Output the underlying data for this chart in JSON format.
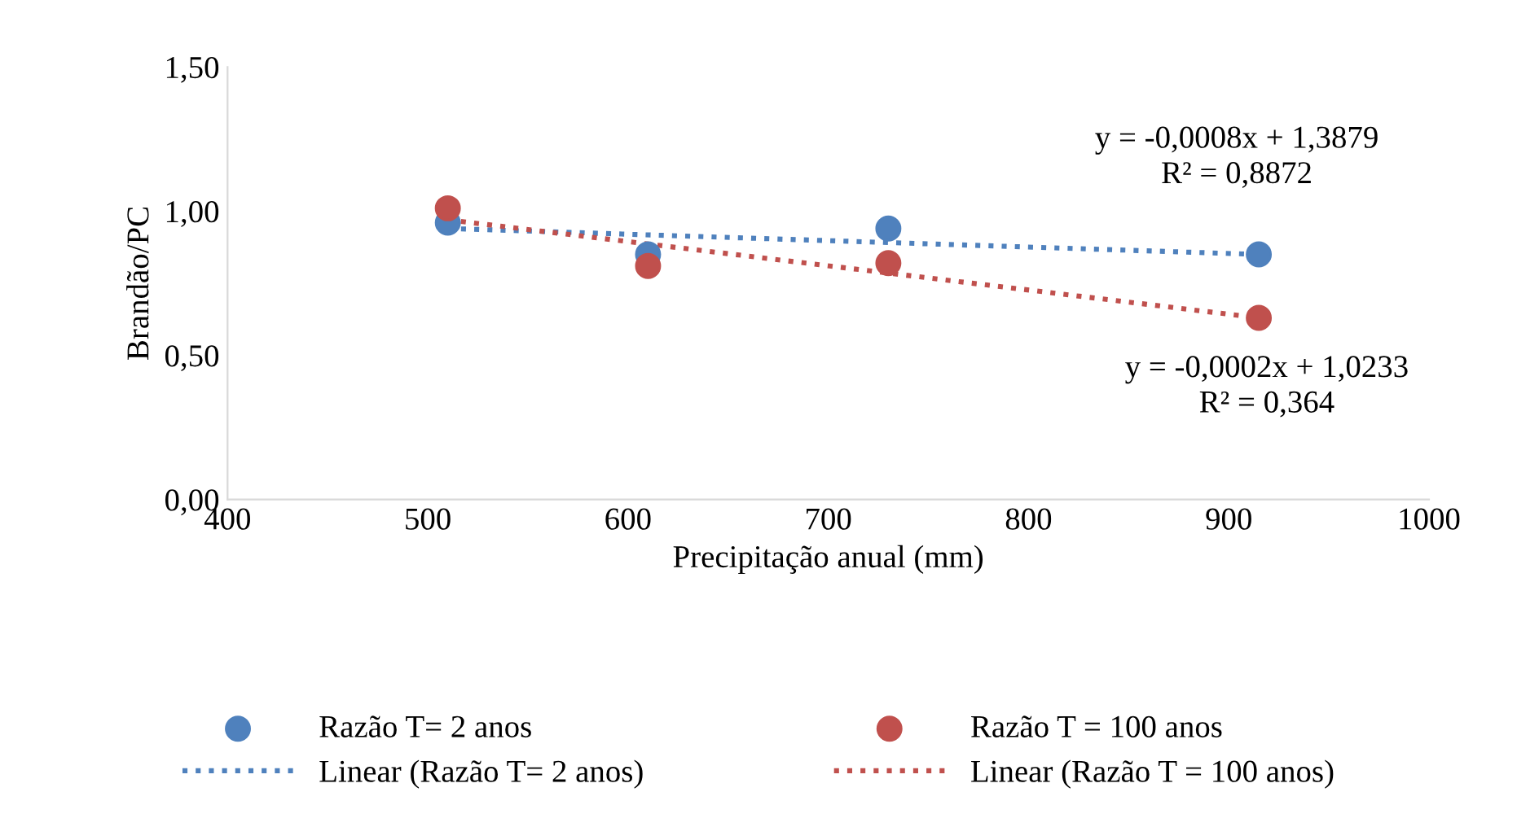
{
  "chart_data": {
    "type": "scatter",
    "xlabel": "Precipitação anual (mm)",
    "ylabel": "Brandão/PC",
    "xlim": [
      400,
      1000
    ],
    "xticks": [
      400,
      500,
      600,
      700,
      800,
      900,
      1000
    ],
    "ylim": [
      0,
      1.5
    ],
    "yticks": [
      {
        "value": 0,
        "label": "0,00"
      },
      {
        "value": 0.5,
        "label": "0,50"
      },
      {
        "value": 1.0,
        "label": "1,00"
      },
      {
        "value": 1.5,
        "label": "1,50"
      }
    ],
    "grid": false,
    "legend": "bottom",
    "marker": "circle",
    "series": [
      {
        "name": "Razão T= 2 anos",
        "color": "#4f81bd",
        "x": [
          510,
          610,
          730,
          915
        ],
        "values": [
          0.96,
          0.85,
          0.94,
          0.85
        ]
      },
      {
        "name": "Linear (Razão T= 2 anos)",
        "type": "line",
        "line_style": "dotted",
        "marker": "none",
        "color": "#4f81bd",
        "x": [
          510,
          915
        ],
        "values": [
          0.94,
          0.85
        ]
      },
      {
        "name": "Razão T = 100 anos",
        "color": "#c0504d",
        "x": [
          510,
          610,
          730,
          915
        ],
        "values": [
          1.01,
          0.81,
          0.82,
          0.63
        ]
      },
      {
        "name": "Linear (Razão T = 100 anos)",
        "type": "line",
        "line_style": "dotted",
        "marker": "none",
        "color": "#c0504d",
        "x": [
          510,
          915
        ],
        "values": [
          0.97,
          0.63
        ]
      }
    ],
    "annotations": [
      "y = -0,0008x + 1,3879\nR² = 0,8872",
      "y = -0,0002x + 1,0233\nR² = 0,364"
    ]
  }
}
